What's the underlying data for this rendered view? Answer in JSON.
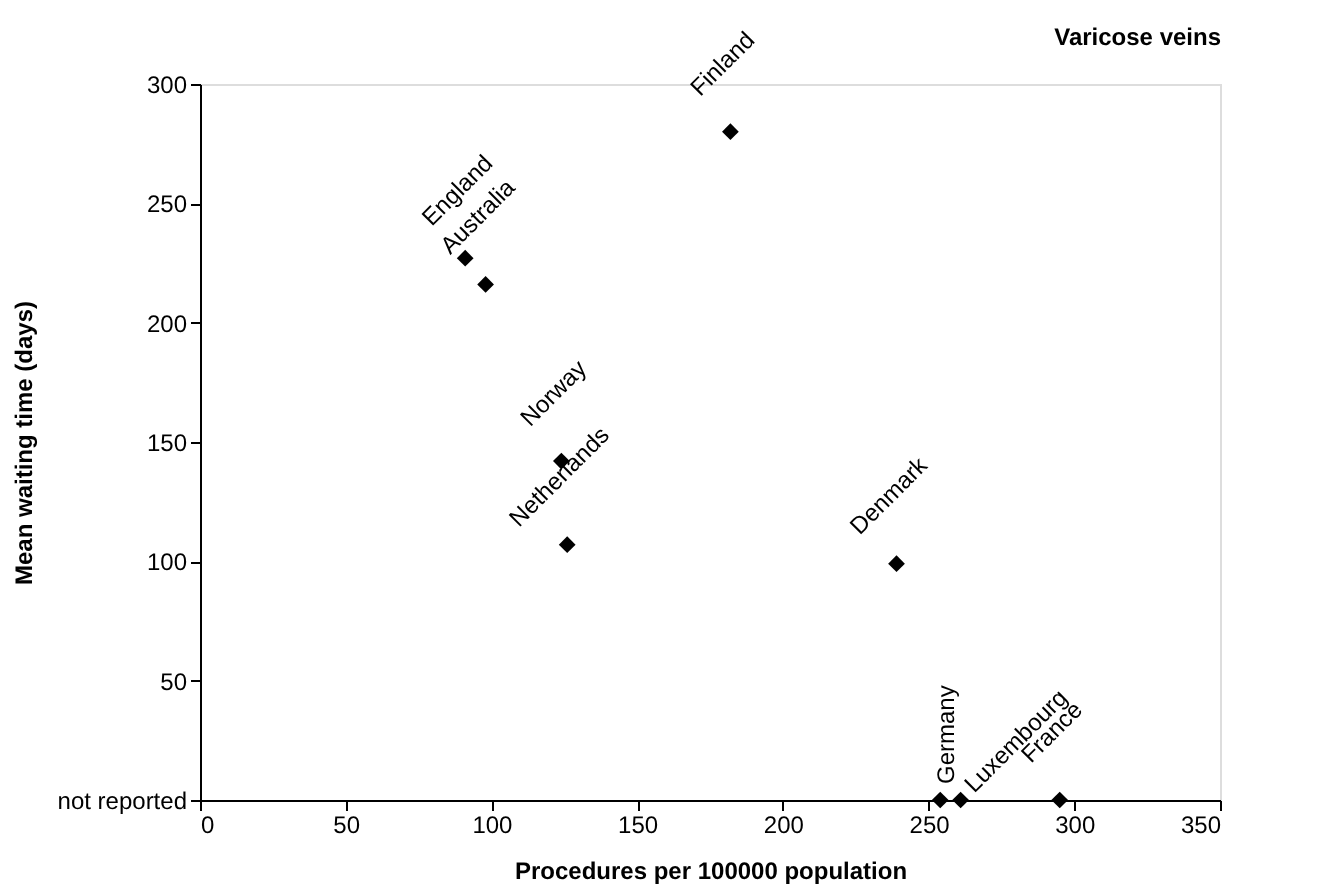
{
  "chart_data": {
    "type": "scatter",
    "title": "Varicose veins",
    "xlabel": "Procedures per 100000 population",
    "ylabel": "Mean waiting time (days)",
    "x": [
      91,
      98,
      182,
      124,
      126,
      239,
      254,
      261,
      295
    ],
    "series": [
      {
        "color": "#000000",
        "values": [
          227,
          216,
          280,
          142,
          107,
          99,
          0,
          0,
          0
        ]
      }
    ],
    "annotations": [
      {
        "text": "England",
        "x": 91,
        "y": 227
      },
      {
        "text": "Australia",
        "x": 98,
        "y": 216
      },
      {
        "text": "Finland",
        "x": 182,
        "y": 280
      },
      {
        "text": "Norway",
        "x": 124,
        "y": 142
      },
      {
        "text": "Netherlands",
        "x": 126,
        "y": 107
      },
      {
        "text": "Denmark",
        "x": 239,
        "y": 99
      },
      {
        "text": "Germany",
        "x": 254,
        "y": 0
      },
      {
        "text": "Luxembourg",
        "x": 261,
        "y": 0
      },
      {
        "text": "France",
        "x": 295,
        "y": 0
      }
    ],
    "xlim": [
      0,
      350
    ],
    "xticks": [
      0,
      50,
      100,
      150,
      200,
      250,
      300,
      350
    ],
    "ylim": [
      0,
      300
    ],
    "yticks": [
      {
        "value": 0,
        "label": "not reported"
      },
      50,
      100,
      150,
      200,
      250,
      300
    ],
    "marker": "diamond",
    "grid": false
  }
}
